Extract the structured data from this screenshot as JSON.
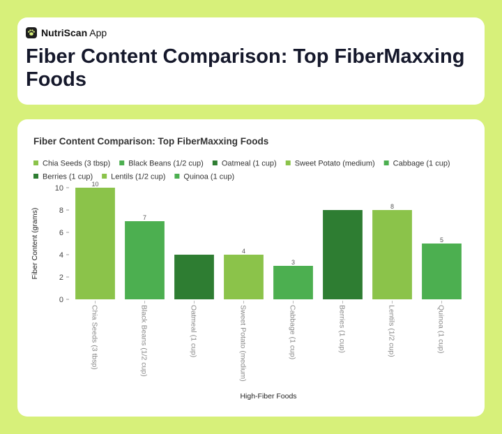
{
  "app": {
    "brand_bold": "NutriScan",
    "brand_rest": " App",
    "logo_icon": "paw-icon"
  },
  "page": {
    "title": "Fiber Content Comparison: Top FiberMaxxing Foods"
  },
  "colors": {
    "page_bg": "#d7f07a",
    "light_green": "#8bc34a",
    "medium_green": "#4caf50",
    "dark_green": "#2e7d32"
  },
  "chart_data": {
    "type": "bar",
    "title": "Fiber Content Comparison: Top FiberMaxxing Foods",
    "xlabel": "High-Fiber Foods",
    "ylabel": "Fiber Content (grams)",
    "ylim": [
      0,
      10
    ],
    "yticks": [
      0,
      2,
      4,
      6,
      8,
      10
    ],
    "grid": false,
    "legend_position": "top",
    "categories": [
      "Chia Seeds (3 tbsp)",
      "Black Beans (1/2 cup)",
      "Oatmeal (1 cup)",
      "Sweet Potato (medium)",
      "Cabbage (1 cup)",
      "Berries (1 cup)",
      "Lentils (1/2 cup)",
      "Quinoa (1 cup)"
    ],
    "values": [
      10,
      7,
      4,
      4,
      3,
      8,
      8,
      5
    ],
    "bar_colors": [
      "#8bc34a",
      "#4caf50",
      "#2e7d32",
      "#8bc34a",
      "#4caf50",
      "#2e7d32",
      "#8bc34a",
      "#4caf50"
    ],
    "data_labels": [
      "10",
      "7",
      "",
      "4",
      "3",
      "",
      "8",
      "5"
    ]
  }
}
